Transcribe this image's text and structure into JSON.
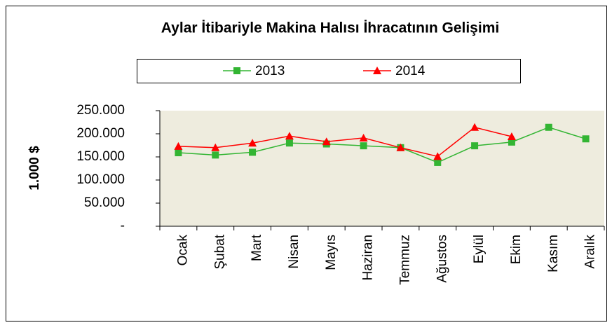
{
  "chart_data": {
    "type": "line",
    "title": "Aylar İtibariyle Makina Halısı İhracatının Gelişimi",
    "ylabel": "1.000 $",
    "categories": [
      "Ocak",
      "Şubat",
      "Mart",
      "Nisan",
      "Mayıs",
      "Haziran",
      "Temmuz",
      "Ağustos",
      "Eylül",
      "Ekim",
      "Kasım",
      "Aralık"
    ],
    "series": [
      {
        "name": "2013",
        "color": "#33b533",
        "marker": "square",
        "values": [
          159000,
          154000,
          160000,
          180000,
          178000,
          174000,
          170000,
          138000,
          174000,
          182000,
          214000,
          189000
        ]
      },
      {
        "name": "2014",
        "color": "#ff0000",
        "marker": "triangle",
        "values": [
          173000,
          170000,
          180000,
          195000,
          183000,
          191000,
          170000,
          151000,
          214000,
          194000,
          null,
          null
        ]
      }
    ],
    "ylim": [
      0,
      250000
    ],
    "yticks": [
      {
        "value": 0,
        "label": "-"
      },
      {
        "value": 50000,
        "label": "50.000"
      },
      {
        "value": 100000,
        "label": "100.000"
      },
      {
        "value": 150000,
        "label": "150.000"
      },
      {
        "value": 200000,
        "label": "200.000"
      },
      {
        "value": 250000,
        "label": "250.000"
      }
    ],
    "plot_background": "#eeecde",
    "legend": "top"
  }
}
